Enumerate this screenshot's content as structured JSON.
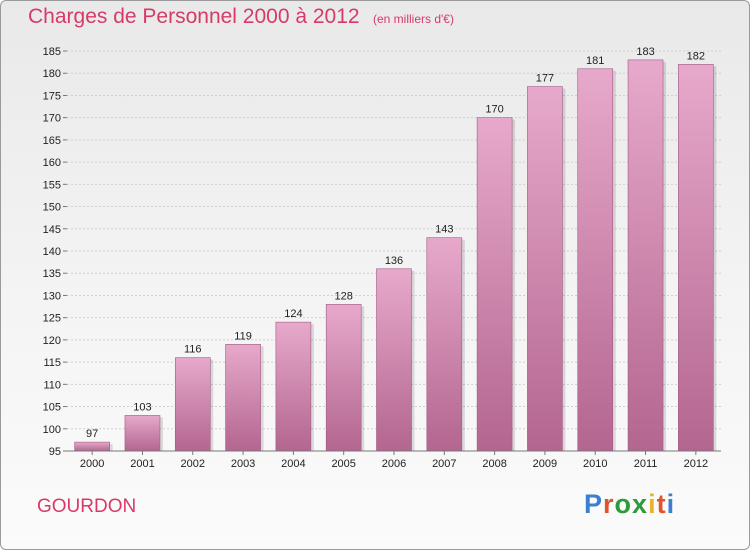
{
  "header": {
    "title": "Charges de Personnel 2000 à 2012",
    "subtitle": "(en milliers d'€)"
  },
  "footer": {
    "town": "GOURDON",
    "logo": "Proxiti",
    "logo_colors": [
      "#3a7fd0",
      "#e0542d",
      "#2d9a3c",
      "#2d9a3c",
      "#e8b32a",
      "#e0542d",
      "#3a7fd0"
    ]
  },
  "colors": {
    "accent": "#d83a68",
    "bar_top": "#e7a9cb",
    "bar_bottom": "#b36690",
    "grid": "#cfcfcf"
  },
  "chart_data": {
    "type": "bar",
    "title": "Charges de Personnel 2000 à 2012",
    "subtitle": "(en milliers d'€)",
    "xlabel": "",
    "ylabel": "",
    "categories": [
      "2000",
      "2001",
      "2002",
      "2003",
      "2004",
      "2005",
      "2006",
      "2007",
      "2008",
      "2009",
      "2010",
      "2011",
      "2012"
    ],
    "values": [
      97,
      103,
      116,
      119,
      124,
      128,
      136,
      143,
      170,
      177,
      181,
      183,
      182
    ],
    "ylim": [
      95,
      185
    ],
    "yticks": [
      95,
      100,
      105,
      110,
      115,
      120,
      125,
      130,
      135,
      140,
      145,
      150,
      155,
      160,
      165,
      170,
      175,
      180,
      185
    ],
    "grid": true
  }
}
